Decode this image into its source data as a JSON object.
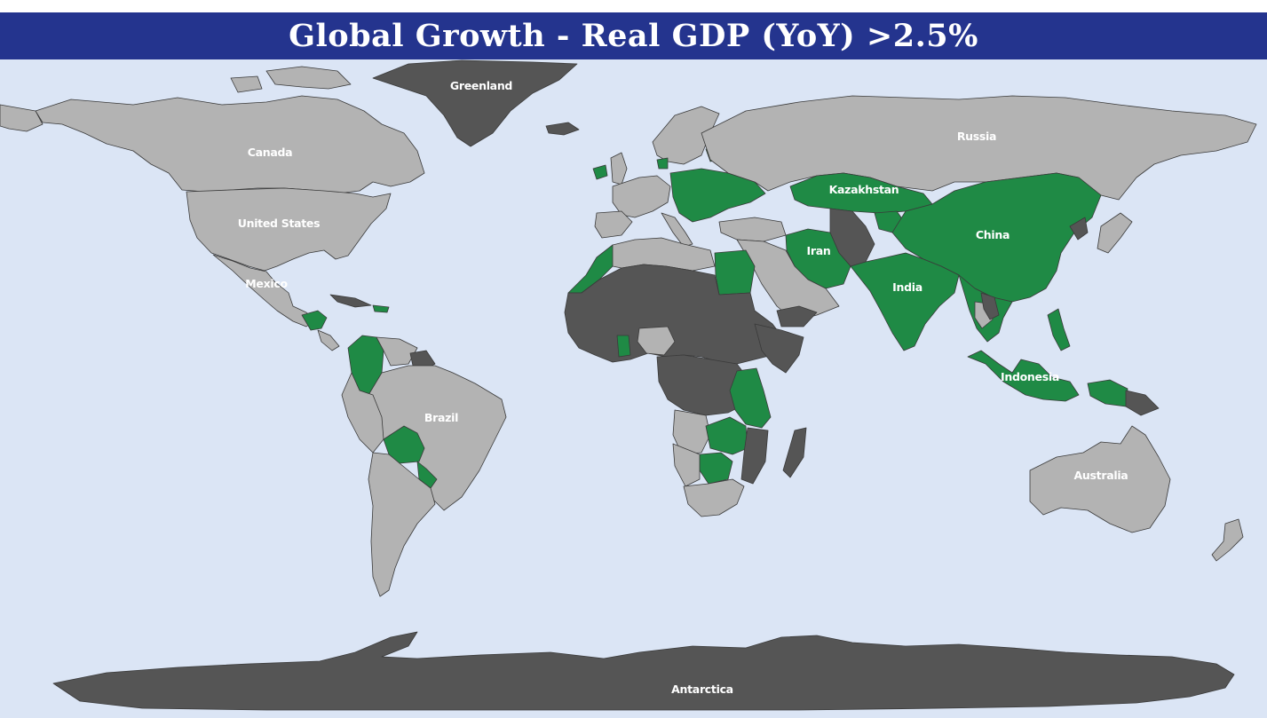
{
  "title": "Global Growth - Real GDP (YoY) >2.5%",
  "colors": {
    "title_bg": "#24348e",
    "ocean": "#dbe5f5",
    "growth_above": "#1f8a45",
    "growth_below": "#b3b3b3",
    "no_data": "#555555"
  },
  "labels": {
    "greenland": "Greenland",
    "canada": "Canada",
    "united_states": "United States",
    "mexico": "Mexico",
    "brazil": "Brazil",
    "russia": "Russia",
    "kazakhstan": "Kazakhstan",
    "china": "China",
    "iran": "Iran",
    "india": "India",
    "indonesia": "Indonesia",
    "australia": "Australia",
    "antarctica": "Antarctica"
  }
}
